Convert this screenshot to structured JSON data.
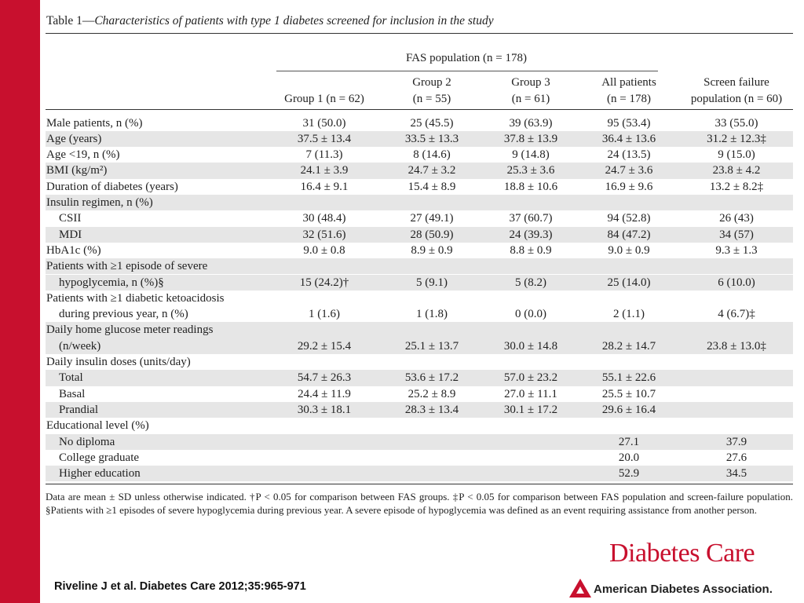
{
  "title": {
    "prefix": "Table 1—",
    "italic": "Characteristics of patients with type 1 diabetes screened for inclusion in the study"
  },
  "header": {
    "fas": "FAS population (n = 178)",
    "group1": "Group 1 (n = 62)",
    "group2_line1": "Group 2",
    "group2_line2": "(n = 55)",
    "group3_line1": "Group 3",
    "group3_line2": "(n = 61)",
    "all_line1": "All patients",
    "all_line2": "(n = 178)",
    "sf_line1": "Screen failure",
    "sf_line2": "population (n = 60)"
  },
  "rows": [
    {
      "label": "Male patients, n (%)",
      "indent": false,
      "g1": "31 (50.0)",
      "g2": "25 (45.5)",
      "g3": "39 (63.9)",
      "all": "95 (53.4)",
      "sf": "33 (55.0)"
    },
    {
      "label": "Age (years)",
      "indent": false,
      "g1": "37.5 ± 13.4",
      "g2": "33.5 ± 13.3",
      "g3": "37.8 ± 13.9",
      "all": "36.4 ± 13.6",
      "sf": "31.2 ± 12.3‡"
    },
    {
      "label": "Age <19, n (%)",
      "indent": false,
      "g1": "7 (11.3)",
      "g2": "8 (14.6)",
      "g3": "9 (14.8)",
      "all": "24 (13.5)",
      "sf": "9 (15.0)"
    },
    {
      "label": "BMI (kg/m²)",
      "indent": false,
      "g1": "24.1 ± 3.9",
      "g2": "24.7 ± 3.2",
      "g3": "25.3 ± 3.6",
      "all": "24.7 ± 3.6",
      "sf": "23.8 ± 4.2"
    },
    {
      "label": "Duration of diabetes (years)",
      "indent": false,
      "g1": "16.4 ± 9.1",
      "g2": "15.4 ± 8.9",
      "g3": "18.8 ± 10.6",
      "all": "16.9 ± 9.6",
      "sf": "13.2 ± 8.2‡"
    },
    {
      "label": "Insulin regimen, n (%)",
      "indent": false,
      "g1": "",
      "g2": "",
      "g3": "",
      "all": "",
      "sf": ""
    },
    {
      "label": "CSII",
      "indent": true,
      "g1": "30 (48.4)",
      "g2": "27 (49.1)",
      "g3": "37 (60.7)",
      "all": "94 (52.8)",
      "sf": "26 (43)"
    },
    {
      "label": "MDI",
      "indent": true,
      "g1": "32 (51.6)",
      "g2": "28 (50.9)",
      "g3": "24 (39.3)",
      "all": "84 (47.2)",
      "sf": "34 (57)"
    },
    {
      "label": "HbA1c (%)",
      "indent": false,
      "g1": "9.0 ± 0.8",
      "g2": "8.9 ± 0.9",
      "g3": "8.8 ± 0.9",
      "all": "9.0 ± 0.9",
      "sf": "9.3 ± 1.3"
    },
    {
      "label": "Patients with ≥1 episode of severe",
      "indent": false,
      "g1": "",
      "g2": "",
      "g3": "",
      "all": "",
      "sf": ""
    },
    {
      "label": "hypoglycemia, n (%)§",
      "indent": true,
      "g1": "15 (24.2)†",
      "g2": "5 (9.1)",
      "g3": "5 (8.2)",
      "all": "25 (14.0)",
      "sf": "6 (10.0)"
    },
    {
      "label": "Patients with ≥1 diabetic ketoacidosis",
      "indent": false,
      "g1": "",
      "g2": "",
      "g3": "",
      "all": "",
      "sf": ""
    },
    {
      "label": "during previous year, n (%)",
      "indent": true,
      "g1": "1 (1.6)",
      "g2": "1 (1.8)",
      "g3": "0 (0.0)",
      "all": "2 (1.1)",
      "sf": "4 (6.7)‡"
    },
    {
      "label": "Daily home glucose meter readings",
      "indent": false,
      "g1": "",
      "g2": "",
      "g3": "",
      "all": "",
      "sf": ""
    },
    {
      "label": "(n/week)",
      "indent": true,
      "g1": "29.2 ± 15.4",
      "g2": "25.1 ± 13.7",
      "g3": "30.0 ± 14.8",
      "all": "28.2 ± 14.7",
      "sf": "23.8 ± 13.0‡"
    },
    {
      "label": "Daily insulin doses (units/day)",
      "indent": false,
      "g1": "",
      "g2": "",
      "g3": "",
      "all": "",
      "sf": ""
    },
    {
      "label": "Total",
      "indent": true,
      "g1": "54.7 ± 26.3",
      "g2": "53.6 ± 17.2",
      "g3": "57.0 ± 23.2",
      "all": "55.1 ± 22.6",
      "sf": ""
    },
    {
      "label": "Basal",
      "indent": true,
      "g1": "24.4 ± 11.9",
      "g2": "25.2 ± 8.9",
      "g3": "27.0 ± 11.1",
      "all": "25.5 ± 10.7",
      "sf": ""
    },
    {
      "label": "Prandial",
      "indent": true,
      "g1": "30.3 ± 18.1",
      "g2": "28.3 ± 13.4",
      "g3": "30.1 ± 17.2",
      "all": "29.6 ± 16.4",
      "sf": ""
    },
    {
      "label": "Educational level (%)",
      "indent": false,
      "g1": "",
      "g2": "",
      "g3": "",
      "all": "",
      "sf": ""
    },
    {
      "label": "No diploma",
      "indent": true,
      "g1": "",
      "g2": "",
      "g3": "",
      "all": "27.1",
      "sf": "37.9"
    },
    {
      "label": "College graduate",
      "indent": true,
      "g1": "",
      "g2": "",
      "g3": "",
      "all": "20.0",
      "sf": "27.6"
    },
    {
      "label": "Higher education",
      "indent": true,
      "g1": "",
      "g2": "",
      "g3": "",
      "all": "52.9",
      "sf": "34.5"
    }
  ],
  "footnote": "Data are mean ± SD unless otherwise indicated. †P < 0.05 for comparison between FAS groups. ‡P < 0.05 for comparison between FAS population and screen-failure population. §Patients with ≥1 episodes of severe hypoglycemia during previous year. A severe episode of hypoglycemia was defined as an event requiring assistance from another person.",
  "brand": "Diabetes Care",
  "citation": "Riveline J et al. Diabetes Care 2012;35:965-971",
  "organization": "American Diabetes Association.",
  "colors": {
    "accent": "#c8102e",
    "row_shade": "#e6e6e6"
  }
}
